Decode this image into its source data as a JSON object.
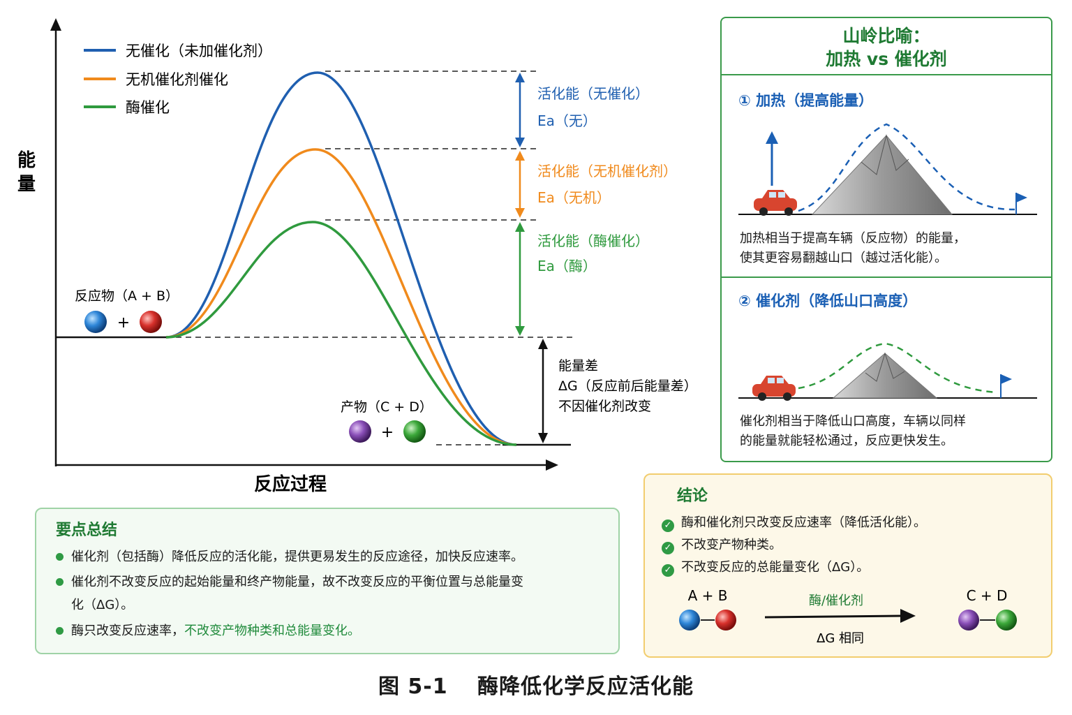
{
  "legend": {
    "uncatalyzed": "无催化（未加催化剂）",
    "inorganic": "无机催化剂催化",
    "enzyme": "酶催化"
  },
  "axes": {
    "y_label": "能量",
    "x_label": "反应过程"
  },
  "reactants": {
    "label": "反应物（A + B）",
    "plus": "+"
  },
  "products": {
    "label": "产物（C + D）",
    "plus": "+"
  },
  "activation": {
    "uncat": {
      "title": "活化能（无催化）",
      "ea": "Ea（无）"
    },
    "inorg": {
      "title": "活化能（无机催化剂）",
      "ea": "Ea（无机）"
    },
    "enzyme": {
      "title": "活化能（酶催化）",
      "ea": "Ea（酶）"
    }
  },
  "delta": {
    "line1": "能量差",
    "line2": "ΔG（反应前后能量差）",
    "line3": "不因催化剂改变"
  },
  "analogy": {
    "title_line1": "山岭比喻：",
    "title_line2": "加热 vs 催化剂",
    "heat_title": "① 加热（提高能量）",
    "heat_text_1": "加热相当于提高车辆（反应物）的能量，",
    "heat_text_2": "使其更容易翻越山口（越过活化能）。",
    "cat_title": "② 催化剂（降低山口高度）",
    "cat_text_1": "催化剂相当于降低山口高度，车辆以同样",
    "cat_text_2": "的能量就能轻松通过，反应更快发生。"
  },
  "summary": {
    "title": "要点总结",
    "b1": "催化剂（包括酶）降低反应的活化能，提供更易发生的反应途径，加快反应速率。",
    "b2_line1": "催化剂不改变反应的起始能量和终产物能量，故不改变反应的平衡位置与总能量变",
    "b2_line2": "化（ΔG）。",
    "b3_plain": "酶只改变反应速率，",
    "b3_highlight": "不改变产物种类和总能量变化。"
  },
  "conclusion": {
    "title": "结论",
    "c1": "酶和催化剂只改变反应速率（降低活化能）。",
    "c2": "不改变产物种类。",
    "c3": "不改变反应的总能量变化（ΔG）。",
    "left": "A + B",
    "right": "C + D",
    "arrow_label": "酶/催化剂",
    "under_label": "ΔG 相同"
  },
  "caption": "图 5-1　 酶降低化学反应活化能",
  "colors": {
    "uncatalyzed": "#1f5fb0",
    "inorganic": "#f08a1c",
    "enzyme": "#2f9a3e",
    "blue_ball": "#2e86d8",
    "red_ball": "#d8312c",
    "purple_ball": "#8a4fb8",
    "green_ball": "#3ca83a"
  },
  "chart_data": {
    "type": "line",
    "xlabel": "反应过程",
    "ylabel": "能量",
    "series": [
      {
        "name": "无催化（未加催化剂）",
        "peak_relative_energy": 1.0
      },
      {
        "name": "无机催化剂催化",
        "peak_relative_energy": 0.71
      },
      {
        "name": "酶催化",
        "peak_relative_energy": 0.43
      }
    ]
  }
}
